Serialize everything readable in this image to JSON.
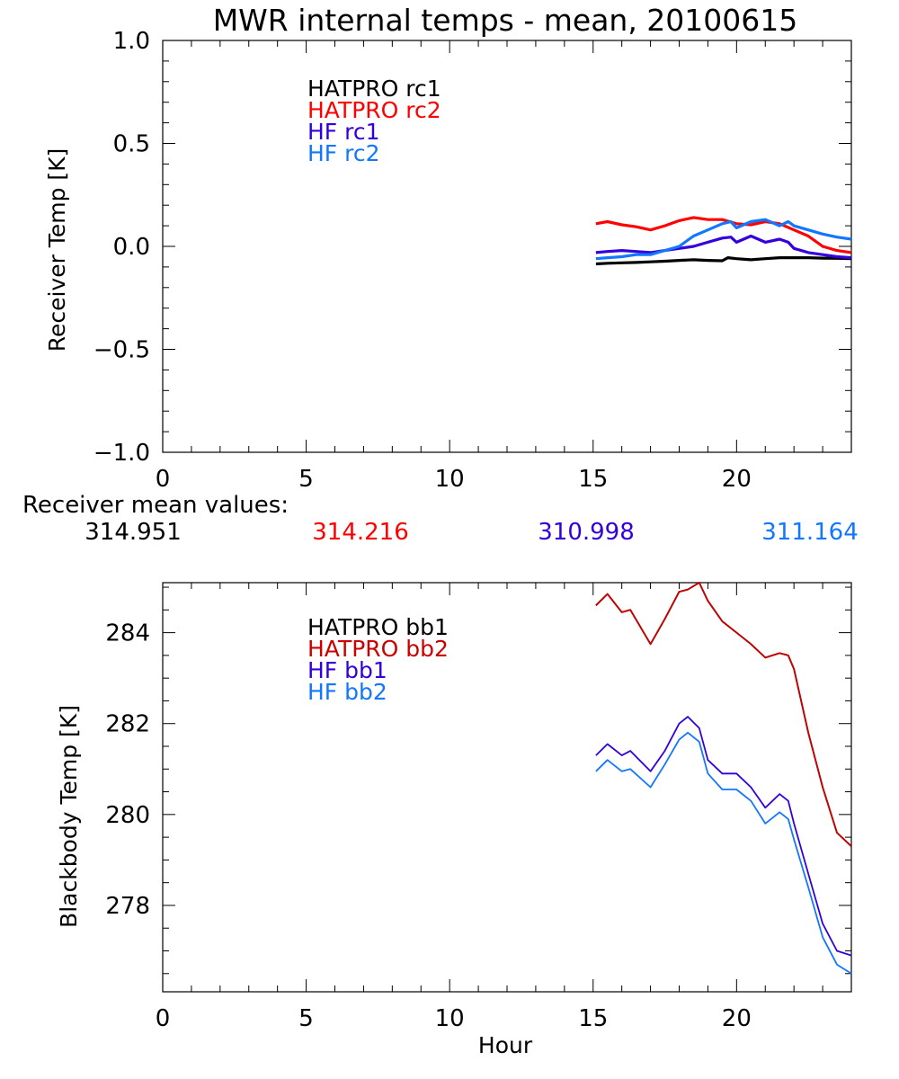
{
  "title": "MWR internal temps - mean, 20100615",
  "colors": {
    "hatpro_1": "#000000",
    "hatpro_2": "#ff0000",
    "hf_1": "#3300dd",
    "hf_2": "#1177ff",
    "bb_red": "#cc0000",
    "axis": "#000000"
  },
  "receiver_means": {
    "label": "Receiver mean values:",
    "values": [
      {
        "value": "314.951",
        "color": "#000000"
      },
      {
        "value": "314.216",
        "color": "#ff0000"
      },
      {
        "value": "310.998",
        "color": "#3300dd"
      },
      {
        "value": "311.164",
        "color": "#1177ff"
      }
    ]
  },
  "chart_data": [
    {
      "type": "line",
      "title": "MWR internal temps - mean, 20100615",
      "xlabel": "",
      "ylabel": "Receiver Temp [K]",
      "xlim": [
        0,
        24
      ],
      "ylim": [
        -1.0,
        1.0
      ],
      "xticks": [
        0,
        5,
        10,
        15,
        20
      ],
      "xtick_labels": [
        "0",
        "5",
        "10",
        "15",
        "20"
      ],
      "yticks": [
        1.0,
        0.5,
        0.0,
        -0.5,
        -1.0
      ],
      "ytick_labels": [
        "1.0",
        "0.5",
        "0.0",
        "−0.5",
        "−1.0"
      ],
      "legend_position": "top-left",
      "series": [
        {
          "name": "HATPRO rc1",
          "color": "#000000",
          "x": [
            15.1,
            15.5,
            16,
            16.5,
            17,
            17.5,
            18,
            18.5,
            19,
            19.5,
            19.7,
            20,
            20.5,
            21,
            21.5,
            22,
            22.5,
            23,
            23.5,
            24
          ],
          "y": [
            -0.085,
            -0.082,
            -0.08,
            -0.078,
            -0.075,
            -0.072,
            -0.068,
            -0.065,
            -0.068,
            -0.07,
            -0.055,
            -0.06,
            -0.065,
            -0.06,
            -0.055,
            -0.055,
            -0.055,
            -0.057,
            -0.058,
            -0.06
          ]
        },
        {
          "name": "HATPRO rc2",
          "color": "#ff0000",
          "x": [
            15.1,
            15.5,
            16,
            16.5,
            17,
            17.5,
            18,
            18.5,
            19,
            19.5,
            20,
            20.5,
            21,
            21.5,
            22,
            22.5,
            23,
            23.5,
            24
          ],
          "y": [
            0.11,
            0.12,
            0.105,
            0.095,
            0.08,
            0.1,
            0.125,
            0.14,
            0.13,
            0.13,
            0.11,
            0.105,
            0.12,
            0.11,
            0.08,
            0.05,
            0.0,
            -0.02,
            -0.03
          ]
        },
        {
          "name": "HF rc1",
          "color": "#3300dd",
          "x": [
            15.1,
            15.5,
            16,
            16.5,
            17,
            17.5,
            18,
            18.5,
            19,
            19.5,
            19.8,
            20,
            20.5,
            21,
            21.5,
            21.8,
            22,
            22.5,
            23,
            23.5,
            24
          ],
          "y": [
            -0.03,
            -0.025,
            -0.02,
            -0.025,
            -0.03,
            -0.02,
            -0.01,
            0.0,
            0.02,
            0.04,
            0.045,
            0.02,
            0.05,
            0.02,
            0.035,
            0.02,
            -0.01,
            -0.03,
            -0.04,
            -0.05,
            -0.055
          ]
        },
        {
          "name": "HF rc2",
          "color": "#1177ff",
          "x": [
            15.1,
            15.5,
            16,
            16.5,
            17,
            17.5,
            18,
            18.5,
            19,
            19.5,
            19.8,
            20,
            20.5,
            21,
            21.5,
            21.8,
            22,
            22.5,
            23,
            23.5,
            24
          ],
          "y": [
            -0.06,
            -0.055,
            -0.05,
            -0.04,
            -0.04,
            -0.02,
            0.0,
            0.05,
            0.08,
            0.11,
            0.12,
            0.09,
            0.12,
            0.13,
            0.1,
            0.12,
            0.1,
            0.08,
            0.06,
            0.045,
            0.035
          ]
        }
      ]
    },
    {
      "type": "line",
      "title": "",
      "xlabel": "Hour",
      "ylabel": "Blackbody Temp [K]",
      "xlim": [
        0,
        24
      ],
      "ylim": [
        276.1,
        285.1
      ],
      "xticks": [
        0,
        5,
        10,
        15,
        20
      ],
      "xtick_labels": [
        "0",
        "5",
        "10",
        "15",
        "20"
      ],
      "yticks": [
        284,
        282,
        280,
        278
      ],
      "ytick_labels": [
        "284",
        "282",
        "280",
        "278"
      ],
      "legend_position": "top-left",
      "series": [
        {
          "name": "HATPRO bb1",
          "color": "#000000",
          "x": [
            15.1,
            15.5,
            16,
            16.3,
            17,
            17.5,
            18,
            18.3,
            18.7,
            19,
            19.5,
            20,
            20.5,
            21,
            21.5,
            21.8,
            22,
            22.5,
            23,
            23.5,
            24
          ],
          "y": [
            284.6,
            284.85,
            284.45,
            284.5,
            283.75,
            284.3,
            284.9,
            284.95,
            285.1,
            284.7,
            284.25,
            284.0,
            283.75,
            283.45,
            283.55,
            283.5,
            283.2,
            281.8,
            280.6,
            279.6,
            279.3
          ]
        },
        {
          "name": "HATPRO bb2",
          "color": "#cc0000",
          "x": [
            15.1,
            15.5,
            16,
            16.3,
            17,
            17.5,
            18,
            18.3,
            18.7,
            19,
            19.5,
            20,
            20.5,
            21,
            21.5,
            21.8,
            22,
            22.5,
            23,
            23.5,
            24
          ],
          "y": [
            284.6,
            284.85,
            284.45,
            284.5,
            283.75,
            284.3,
            284.9,
            284.95,
            285.1,
            284.7,
            284.25,
            284.0,
            283.75,
            283.45,
            283.55,
            283.5,
            283.2,
            281.8,
            280.6,
            279.6,
            279.3
          ]
        },
        {
          "name": "HF bb1",
          "color": "#3300dd",
          "x": [
            15.1,
            15.5,
            16,
            16.3,
            17,
            17.5,
            18,
            18.3,
            18.7,
            19,
            19.5,
            20,
            20.5,
            21,
            21.5,
            21.8,
            22,
            22.5,
            23,
            23.5,
            24
          ],
          "y": [
            281.3,
            281.55,
            281.3,
            281.4,
            280.95,
            281.4,
            282.0,
            282.15,
            281.9,
            281.2,
            280.9,
            280.9,
            280.6,
            280.15,
            280.45,
            280.3,
            279.8,
            278.7,
            277.6,
            277.0,
            276.9
          ]
        },
        {
          "name": "HF bb2",
          "color": "#1177ff",
          "x": [
            15.1,
            15.5,
            16,
            16.3,
            17,
            17.5,
            18,
            18.3,
            18.7,
            19,
            19.5,
            20,
            20.5,
            21,
            21.5,
            21.8,
            22,
            22.5,
            23,
            23.5,
            24
          ],
          "y": [
            280.95,
            281.2,
            280.95,
            281.0,
            280.6,
            281.1,
            281.65,
            281.8,
            281.6,
            280.9,
            280.55,
            280.55,
            280.3,
            279.8,
            280.05,
            279.9,
            279.45,
            278.4,
            277.3,
            276.7,
            276.5
          ]
        }
      ]
    }
  ]
}
